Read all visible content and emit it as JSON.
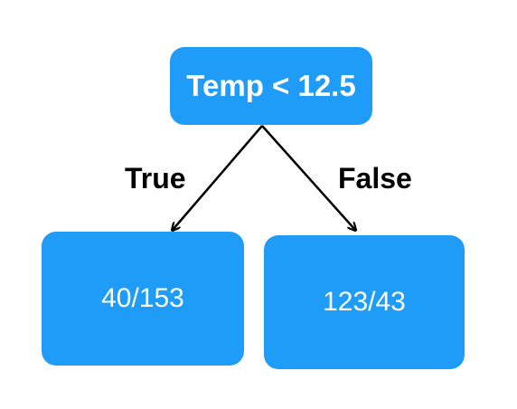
{
  "tree": {
    "root": {
      "label": "Temp < 12.5"
    },
    "left": {
      "edge_label": "True",
      "label": "40/153"
    },
    "right": {
      "edge_label": "False",
      "label": "123/43"
    }
  },
  "colors": {
    "node_fill": "#1e9cf8",
    "node_text": "#ffffff",
    "edge": "#000000",
    "edge_label": "#000000"
  }
}
